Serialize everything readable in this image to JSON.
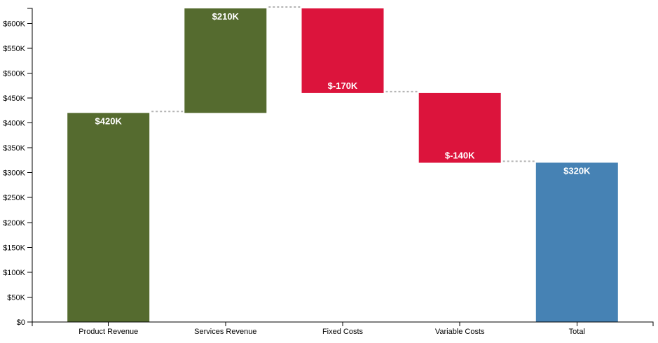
{
  "chart_data": {
    "type": "bar",
    "subtype": "waterfall",
    "title": "",
    "xlabel": "",
    "ylabel": "",
    "grid": false,
    "legend": "none",
    "categories": [
      "Product Revenue",
      "Services Revenue",
      "Fixed Costs",
      "Variable Costs",
      "Total"
    ],
    "values": [
      420,
      210,
      -170,
      -140,
      320
    ],
    "value_labels": [
      "$420K",
      "$210K",
      "$-170K",
      "$-140K",
      "$320K"
    ],
    "bar_roles": [
      "positive",
      "positive",
      "negative",
      "negative",
      "total"
    ],
    "running_levels": [
      420,
      630,
      460,
      320,
      320
    ],
    "y_tick_values": [
      0,
      50,
      100,
      150,
      200,
      250,
      300,
      350,
      400,
      450,
      500,
      550,
      600
    ],
    "y_tick_labels": [
      "$0",
      "$50K",
      "$100K",
      "$150K",
      "$200K",
      "$250K",
      "$300K",
      "$350K",
      "$400K",
      "$450K",
      "$500K",
      "$550K",
      "$600K"
    ],
    "ylim": [
      0,
      630
    ],
    "colors": {
      "positive": "#556B2F",
      "negative": "#DC143C",
      "total": "#4682B4",
      "connector": "#B3B3B3",
      "axis": "#000000",
      "bar_label_text": "#FFFFFF"
    }
  }
}
